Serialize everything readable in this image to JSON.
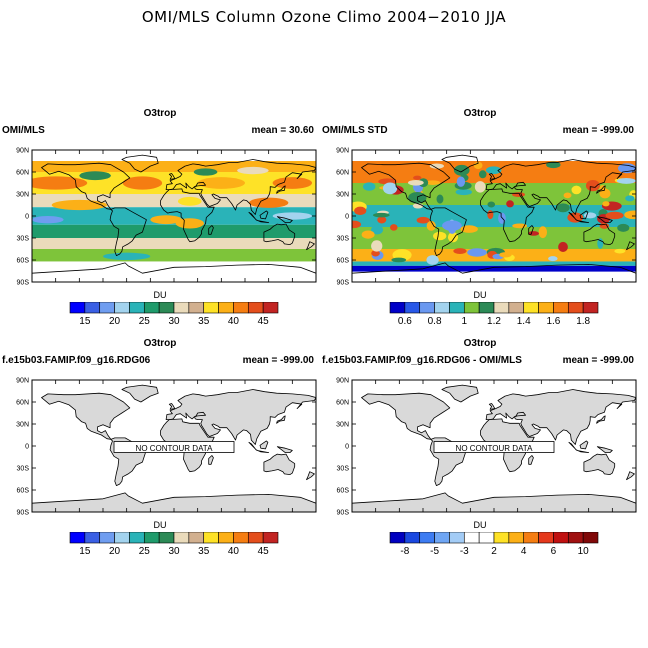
{
  "page_title": "OMI/MLS Column Ozone Climo 2004−2010 JJA",
  "lat_labels": [
    "90N",
    "60N",
    "30N",
    "0",
    "30S",
    "60S",
    "90S"
  ],
  "panels": [
    {
      "title": "O3trop",
      "left": "OMI/MLS",
      "right": "mean =  30.60",
      "units": "DU",
      "no_data": "",
      "kind": "ozone",
      "colors": [
        "#0000ff",
        "#3a5fe4",
        "#6f9df0",
        "#a3d3ee",
        "#2ab3b8",
        "#1f9b6b",
        "#2c8a56",
        "#eadbbb",
        "#d2b08f",
        "#fee227",
        "#fcb017",
        "#f57d12",
        "#e44e1c",
        "#c22422"
      ],
      "ticks": [
        "15",
        "20",
        "25",
        "30",
        "35",
        "40",
        "45"
      ]
    },
    {
      "title": "O3trop",
      "left": "OMI/MLS STD",
      "right": "mean = -999.00",
      "units": "DU",
      "no_data": "",
      "kind": "std",
      "colors": [
        "#0000c8",
        "#2858e8",
        "#6a98f0",
        "#a3d3ee",
        "#2ab3b8",
        "#7ec43a",
        "#2c8a56",
        "#eadbbb",
        "#d2b08f",
        "#fee227",
        "#fcb017",
        "#f57d12",
        "#e44e1c",
        "#c22422"
      ],
      "ticks": [
        "0.6",
        "0.8",
        "1",
        "1.2",
        "1.4",
        "1.6",
        "1.8"
      ]
    },
    {
      "title": "O3trop",
      "left": "f.e15b03.FAMIP.f09_g16.RDG06",
      "right": "mean = -999.00",
      "units": "DU",
      "no_data": "NO CONTOUR DATA",
      "kind": "blank",
      "colors": [
        "#0000ff",
        "#3a5fe4",
        "#6f9df0",
        "#a3d3ee",
        "#2ab3b8",
        "#1f9b6b",
        "#2c8a56",
        "#eadbbb",
        "#d2b08f",
        "#fee227",
        "#fcb017",
        "#f57d12",
        "#e44e1c",
        "#c22422"
      ],
      "ticks": [
        "15",
        "20",
        "25",
        "30",
        "35",
        "40",
        "45"
      ]
    },
    {
      "title": "O3trop",
      "left": "f.e15b03.FAMIP.f09_g16.RDG06 - OMI/MLS",
      "right": "mean = -999.00",
      "units": "DU",
      "no_data": "NO CONTOUR DATA",
      "kind": "blank",
      "colors": [
        "#0000c0",
        "#1a48e0",
        "#3d7cf2",
        "#6fa6f4",
        "#a3ccf6",
        "#ffffff",
        "#ffffff",
        "#fee227",
        "#fcb017",
        "#f57d12",
        "#e5391c",
        "#c01010",
        "#a01010",
        "#800808"
      ],
      "ticks": [
        "-8",
        "-5",
        "-3",
        "2",
        "4",
        "6",
        "10"
      ]
    }
  ]
}
